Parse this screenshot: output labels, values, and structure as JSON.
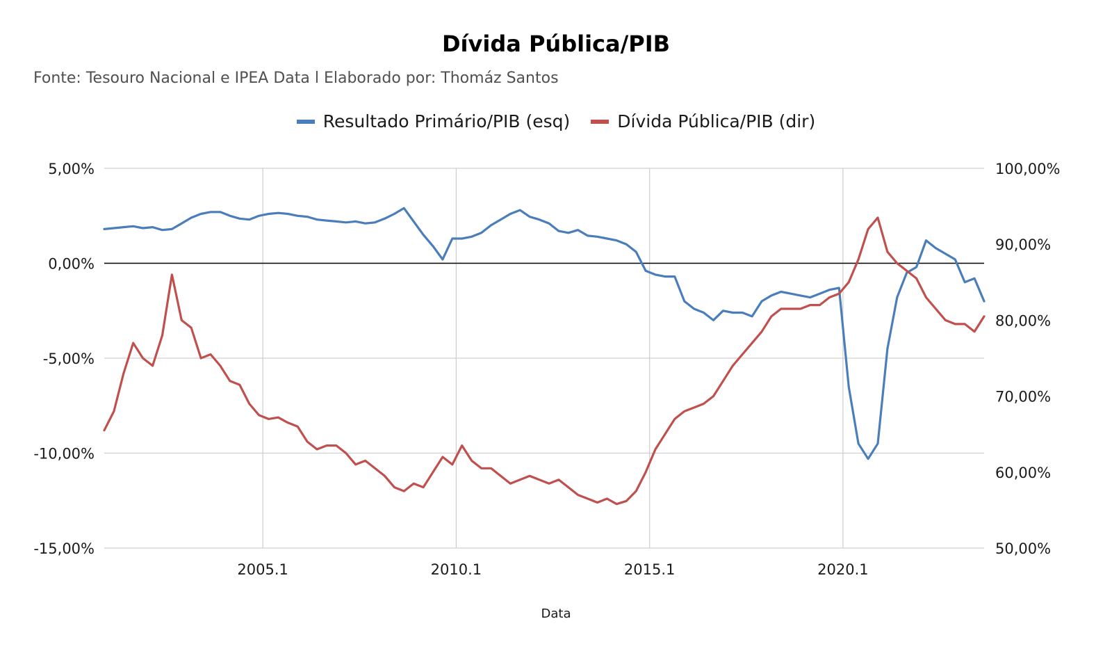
{
  "chart_data": {
    "type": "line",
    "title": "Dívida Pública/PIB",
    "subtitle": "Fonte: Tesouro Nacional e IPEA Data l Elaborado por: Thomáz Santos",
    "xlabel": "Data",
    "x_ticks": [
      "2005.1",
      "2010.1",
      "2015.1",
      "2020.1"
    ],
    "x_range": [
      2001.0,
      2023.75
    ],
    "y_left": {
      "ticks": [
        "5,00%",
        "0,00%",
        "-5,00%",
        "-10,00%",
        "-15,00%"
      ],
      "ylim": [
        -15,
        5
      ]
    },
    "y_right": {
      "ticks": [
        "100,00%",
        "90,00%",
        "80,00%",
        "70,00%",
        "60,00%",
        "50,00%"
      ],
      "ylim": [
        50,
        100
      ]
    },
    "grid": "vertical",
    "legend_position": "top",
    "series": [
      {
        "name": "Resultado Primário/PIB (esq)",
        "axis": "left",
        "color": "#4a7ebb",
        "points": [
          [
            2001.0,
            1.8
          ],
          [
            2001.25,
            1.85
          ],
          [
            2001.5,
            1.9
          ],
          [
            2001.75,
            1.95
          ],
          [
            2002.0,
            1.85
          ],
          [
            2002.25,
            1.9
          ],
          [
            2002.5,
            1.75
          ],
          [
            2002.75,
            1.8
          ],
          [
            2003.0,
            2.1
          ],
          [
            2003.25,
            2.4
          ],
          [
            2003.5,
            2.6
          ],
          [
            2003.75,
            2.7
          ],
          [
            2004.0,
            2.7
          ],
          [
            2004.25,
            2.5
          ],
          [
            2004.5,
            2.35
          ],
          [
            2004.75,
            2.3
          ],
          [
            2005.0,
            2.5
          ],
          [
            2005.25,
            2.6
          ],
          [
            2005.5,
            2.65
          ],
          [
            2005.75,
            2.6
          ],
          [
            2006.0,
            2.5
          ],
          [
            2006.25,
            2.45
          ],
          [
            2006.5,
            2.3
          ],
          [
            2006.75,
            2.25
          ],
          [
            2007.0,
            2.2
          ],
          [
            2007.25,
            2.15
          ],
          [
            2007.5,
            2.2
          ],
          [
            2007.75,
            2.1
          ],
          [
            2008.0,
            2.15
          ],
          [
            2008.25,
            2.35
          ],
          [
            2008.5,
            2.6
          ],
          [
            2008.75,
            2.9
          ],
          [
            2009.0,
            2.2
          ],
          [
            2009.25,
            1.5
          ],
          [
            2009.5,
            0.9
          ],
          [
            2009.75,
            0.2
          ],
          [
            2010.0,
            1.3
          ],
          [
            2010.25,
            1.3
          ],
          [
            2010.5,
            1.4
          ],
          [
            2010.75,
            1.6
          ],
          [
            2011.0,
            2.0
          ],
          [
            2011.25,
            2.3
          ],
          [
            2011.5,
            2.6
          ],
          [
            2011.75,
            2.8
          ],
          [
            2012.0,
            2.45
          ],
          [
            2012.25,
            2.3
          ],
          [
            2012.5,
            2.1
          ],
          [
            2012.75,
            1.7
          ],
          [
            2013.0,
            1.6
          ],
          [
            2013.25,
            1.75
          ],
          [
            2013.5,
            1.45
          ],
          [
            2013.75,
            1.4
          ],
          [
            2014.0,
            1.3
          ],
          [
            2014.25,
            1.2
          ],
          [
            2014.5,
            1.0
          ],
          [
            2014.75,
            0.6
          ],
          [
            2015.0,
            -0.4
          ],
          [
            2015.25,
            -0.6
          ],
          [
            2015.5,
            -0.7
          ],
          [
            2015.75,
            -0.7
          ],
          [
            2016.0,
            -2.0
          ],
          [
            2016.25,
            -2.4
          ],
          [
            2016.5,
            -2.6
          ],
          [
            2016.75,
            -3.0
          ],
          [
            2017.0,
            -2.5
          ],
          [
            2017.25,
            -2.6
          ],
          [
            2017.5,
            -2.6
          ],
          [
            2017.75,
            -2.8
          ],
          [
            2018.0,
            -2.0
          ],
          [
            2018.25,
            -1.7
          ],
          [
            2018.5,
            -1.5
          ],
          [
            2018.75,
            -1.6
          ],
          [
            2019.0,
            -1.7
          ],
          [
            2019.25,
            -1.8
          ],
          [
            2019.5,
            -1.6
          ],
          [
            2019.75,
            -1.4
          ],
          [
            2020.0,
            -1.3
          ],
          [
            2020.25,
            -6.5
          ],
          [
            2020.5,
            -9.5
          ],
          [
            2020.75,
            -10.3
          ],
          [
            2021.0,
            -9.5
          ],
          [
            2021.25,
            -4.5
          ],
          [
            2021.5,
            -1.8
          ],
          [
            2021.75,
            -0.5
          ],
          [
            2022.0,
            -0.2
          ],
          [
            2022.25,
            1.2
          ],
          [
            2022.5,
            0.8
          ],
          [
            2022.75,
            0.5
          ],
          [
            2023.0,
            0.2
          ],
          [
            2023.25,
            -1.0
          ],
          [
            2023.5,
            -0.8
          ],
          [
            2023.75,
            -2.0
          ]
        ]
      },
      {
        "name": "Dívida Pública/PIB (dir)",
        "axis": "right",
        "color": "#c0504d",
        "points": [
          [
            2001.0,
            65.5
          ],
          [
            2001.25,
            68.0
          ],
          [
            2001.5,
            73.0
          ],
          [
            2001.75,
            77.0
          ],
          [
            2002.0,
            75.0
          ],
          [
            2002.25,
            74.0
          ],
          [
            2002.5,
            78.0
          ],
          [
            2002.75,
            86.0
          ],
          [
            2003.0,
            80.0
          ],
          [
            2003.25,
            79.0
          ],
          [
            2003.5,
            75.0
          ],
          [
            2003.75,
            75.5
          ],
          [
            2004.0,
            74.0
          ],
          [
            2004.25,
            72.0
          ],
          [
            2004.5,
            71.5
          ],
          [
            2004.75,
            69.0
          ],
          [
            2005.0,
            67.5
          ],
          [
            2005.25,
            67.0
          ],
          [
            2005.5,
            67.2
          ],
          [
            2005.75,
            66.5
          ],
          [
            2006.0,
            66.0
          ],
          [
            2006.25,
            64.0
          ],
          [
            2006.5,
            63.0
          ],
          [
            2006.75,
            63.5
          ],
          [
            2007.0,
            63.5
          ],
          [
            2007.25,
            62.5
          ],
          [
            2007.5,
            61.0
          ],
          [
            2007.75,
            61.5
          ],
          [
            2008.0,
            60.5
          ],
          [
            2008.25,
            59.5
          ],
          [
            2008.5,
            58.0
          ],
          [
            2008.75,
            57.5
          ],
          [
            2009.0,
            58.5
          ],
          [
            2009.25,
            58.0
          ],
          [
            2009.5,
            60.0
          ],
          [
            2009.75,
            62.0
          ],
          [
            2010.0,
            61.0
          ],
          [
            2010.25,
            63.5
          ],
          [
            2010.5,
            61.5
          ],
          [
            2010.75,
            60.5
          ],
          [
            2011.0,
            60.5
          ],
          [
            2011.25,
            59.5
          ],
          [
            2011.5,
            58.5
          ],
          [
            2011.75,
            59.0
          ],
          [
            2012.0,
            59.5
          ],
          [
            2012.25,
            59.0
          ],
          [
            2012.5,
            58.5
          ],
          [
            2012.75,
            59.0
          ],
          [
            2013.0,
            58.0
          ],
          [
            2013.25,
            57.0
          ],
          [
            2013.5,
            56.5
          ],
          [
            2013.75,
            56.0
          ],
          [
            2014.0,
            56.5
          ],
          [
            2014.25,
            55.8
          ],
          [
            2014.5,
            56.2
          ],
          [
            2014.75,
            57.5
          ],
          [
            2015.0,
            60.0
          ],
          [
            2015.25,
            63.0
          ],
          [
            2015.5,
            65.0
          ],
          [
            2015.75,
            67.0
          ],
          [
            2016.0,
            68.0
          ],
          [
            2016.25,
            68.5
          ],
          [
            2016.5,
            69.0
          ],
          [
            2016.75,
            70.0
          ],
          [
            2017.0,
            72.0
          ],
          [
            2017.25,
            74.0
          ],
          [
            2017.5,
            75.5
          ],
          [
            2017.75,
            77.0
          ],
          [
            2018.0,
            78.5
          ],
          [
            2018.25,
            80.5
          ],
          [
            2018.5,
            81.5
          ],
          [
            2018.75,
            81.5
          ],
          [
            2019.0,
            81.5
          ],
          [
            2019.25,
            82.0
          ],
          [
            2019.5,
            82.0
          ],
          [
            2019.75,
            83.0
          ],
          [
            2020.0,
            83.5
          ],
          [
            2020.25,
            85.0
          ],
          [
            2020.5,
            88.0
          ],
          [
            2020.75,
            92.0
          ],
          [
            2021.0,
            93.5
          ],
          [
            2021.25,
            89.0
          ],
          [
            2021.5,
            87.5
          ],
          [
            2021.75,
            86.5
          ],
          [
            2022.0,
            85.5
          ],
          [
            2022.25,
            83.0
          ],
          [
            2022.5,
            81.5
          ],
          [
            2022.75,
            80.0
          ],
          [
            2023.0,
            79.5
          ],
          [
            2023.25,
            79.5
          ],
          [
            2023.5,
            78.5
          ],
          [
            2023.75,
            80.5
          ]
        ]
      }
    ]
  }
}
